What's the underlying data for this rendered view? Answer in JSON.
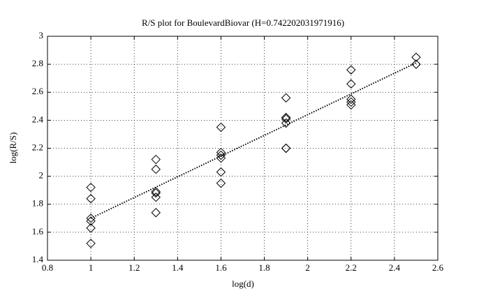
{
  "chart_data": {
    "type": "scatter",
    "title": "R/S plot for BoulevardBiovar (H=0.742202031971916)",
    "x_label": "log(d)",
    "y_label": "log(R/S)",
    "x": [
      1,
      1,
      1,
      1,
      1,
      1,
      1.3,
      1.3,
      1.3,
      1.3,
      1.3,
      1.3,
      1.6,
      1.6,
      1.6,
      1.6,
      1.6,
      1.6,
      1.9,
      1.9,
      1.9,
      1.9,
      1.9,
      1.9,
      2.2,
      2.2,
      2.2,
      2.2,
      2.2,
      2.5,
      2.5
    ],
    "values": [
      1.92,
      1.84,
      1.7,
      1.68,
      1.63,
      1.52,
      2.12,
      2.05,
      1.89,
      1.88,
      1.85,
      1.74,
      2.35,
      2.17,
      2.15,
      2.13,
      2.03,
      1.95,
      2.56,
      2.42,
      2.41,
      2.38,
      2.2,
      2.2,
      2.76,
      2.66,
      2.55,
      2.53,
      2.51,
      2.85,
      2.8
    ],
    "color": "#000000",
    "fit_line": {
      "x": [
        1,
        2.5
      ],
      "values": [
        1.7,
        2.81
      ]
    },
    "xlim": [
      0.8,
      2.6
    ],
    "xticks": [
      0.8,
      1,
      1.2,
      1.4,
      1.6,
      1.8,
      2,
      2.2,
      2.4,
      2.6
    ],
    "ylim": [
      1.4,
      3
    ],
    "yticks": [
      1.4,
      1.6,
      1.8,
      2,
      2.2,
      2.4,
      2.6,
      2.8,
      3
    ],
    "grid": true
  }
}
